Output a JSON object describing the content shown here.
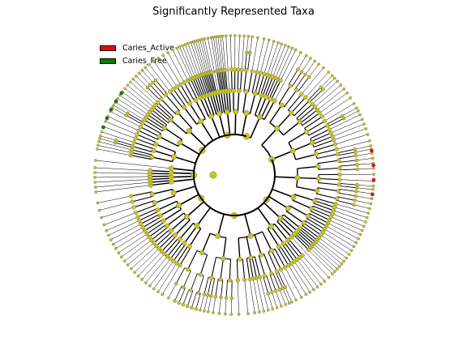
{
  "figure": {
    "title": "Significantly Represented Taxa",
    "legend": [
      {
        "label": "Caries_Active",
        "color": "#ff0000"
      },
      {
        "label": "Caries_Free",
        "color": "#008000"
      }
    ],
    "node_color": "#c8c81e",
    "highlight_branches": {
      "Caries_Active": 4,
      "Caries_Free": 5
    }
  }
}
